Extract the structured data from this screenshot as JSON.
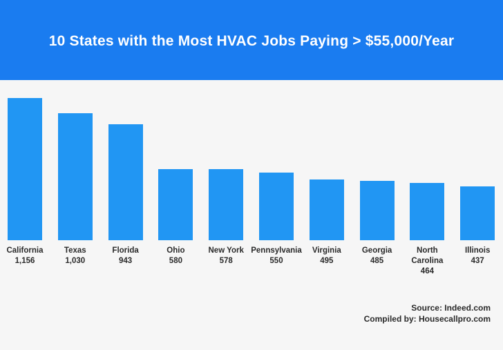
{
  "header": {
    "title": "10 States with the Most HVAC Jobs Paying > $55,000/Year"
  },
  "colors": {
    "header_bg": "#1a7cf0",
    "bar": "#2196f3",
    "background": "#f6f6f6"
  },
  "chart_data": {
    "type": "bar",
    "title": "10 States with the Most HVAC Jobs Paying > $55,000/Year",
    "categories": [
      "California",
      "Texas",
      "Florida",
      "Ohio",
      "New York",
      "Pennsylvania",
      "Virginia",
      "Georgia",
      "North Carolina",
      "Illinois"
    ],
    "values": [
      1156,
      1030,
      943,
      580,
      578,
      550,
      495,
      485,
      464,
      437
    ],
    "value_labels": [
      "1,156",
      "1,030",
      "943",
      "580",
      "578",
      "550",
      "495",
      "485",
      "464",
      "437"
    ],
    "xlabel": "",
    "ylabel": "",
    "ylim": [
      0,
      1156
    ],
    "grid": false
  },
  "footer": {
    "source": "Source: Indeed.com",
    "compiled": "Compiled by: Housecallpro.com"
  }
}
